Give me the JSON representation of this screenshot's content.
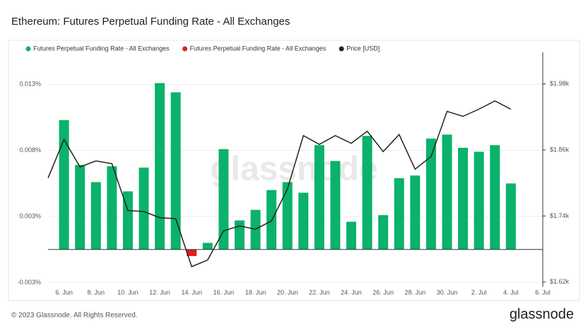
{
  "chart_data": {
    "type": "bar",
    "title": "Ethereum: Futures Perpetual Funding Rate - All Exchanges",
    "watermark": "glassnode",
    "footer": "© 2023 Glassnode. All Rights Reserved.",
    "logo": "glassnode",
    "categories": [
      null,
      "6. Jun",
      null,
      "8. Jun",
      null,
      "10. Jun",
      null,
      "12. Jun",
      null,
      "14. Jun",
      null,
      "16. Jun",
      null,
      "18. Jun",
      null,
      "20. Jun",
      null,
      "22. Jun",
      null,
      "24. Jun",
      null,
      "26. Jun",
      null,
      "28. Jun",
      null,
      "30. Jun",
      null,
      "2. Jul",
      null,
      "4. Jul",
      null,
      "6. Jul"
    ],
    "ylim": [
      -0.0028,
      0.0145
    ],
    "yticks": [
      {
        "value": -0.0025,
        "label": "-0.003%"
      },
      {
        "value": 0.0025,
        "label": "0.003%"
      },
      {
        "value": 0.0075,
        "label": "0.008%"
      },
      {
        "value": 0.0125,
        "label": "0.013%"
      }
    ],
    "y2lim": [
      1612,
      2027
    ],
    "y2ticks": [
      {
        "value": 1620,
        "label": "$1.62k"
      },
      {
        "value": 1740,
        "label": "$1.74k"
      },
      {
        "value": 1860,
        "label": "$1.86k"
      },
      {
        "value": 1980,
        "label": "$1.98k"
      }
    ],
    "grid": true,
    "series": [
      {
        "name": "Futures Perpetual Funding Rate - All Exchanges",
        "type": "bar",
        "color": "#0ab26b",
        "values": [
          null,
          0.0098,
          0.0064,
          0.0051,
          0.0063,
          0.0044,
          0.0062,
          0.0126,
          0.0119,
          null,
          0.0005,
          0.0076,
          0.0022,
          0.003,
          0.0045,
          0.0051,
          0.0043,
          0.0079,
          0.0067,
          0.0021,
          0.0086,
          0.0026,
          0.0054,
          0.0056,
          0.0084,
          0.0087,
          0.0077,
          0.0074,
          0.0079,
          0.005,
          null,
          null
        ]
      },
      {
        "name": "Futures Perpetual Funding Rate - All Exchanges",
        "type": "bar",
        "color": "#e0201b",
        "values": [
          null,
          null,
          null,
          null,
          null,
          null,
          null,
          null,
          null,
          -0.0005,
          null,
          null,
          null,
          null,
          null,
          null,
          null,
          null,
          null,
          null,
          null,
          null,
          null,
          null,
          null,
          null,
          null,
          null,
          null,
          null,
          null,
          null
        ]
      },
      {
        "name": "Price [USD]",
        "type": "line",
        "axis": "y2",
        "color": "#222222",
        "values": [
          1809,
          1879,
          1829,
          1840,
          1835,
          1750,
          1748,
          1737,
          1735,
          1648,
          1660,
          1713,
          1722,
          1716,
          1731,
          1789,
          1886,
          1870,
          1886,
          1872,
          1894,
          1857,
          1888,
          1825,
          1848,
          1930,
          1921,
          1934,
          1949,
          1934,
          null,
          null
        ]
      }
    ]
  }
}
